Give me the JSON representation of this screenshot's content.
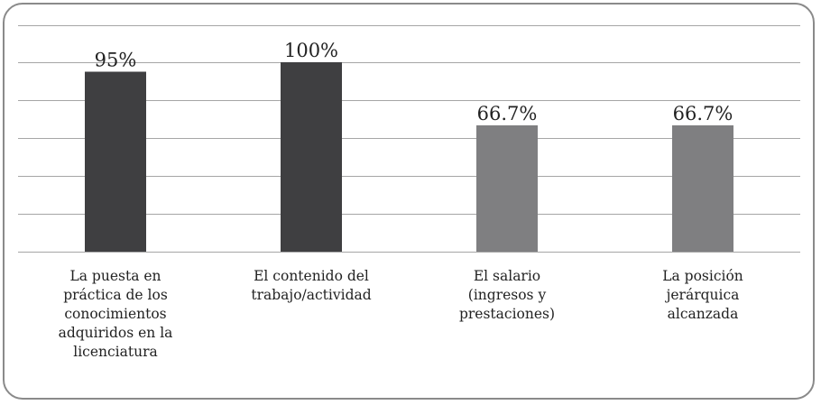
{
  "chart_data": {
    "type": "bar",
    "categories": [
      "La puesta en práctica de los conocimientos adquiridos en la licenciatura",
      "El contenido del trabajo/actividad",
      "El salario (ingresos y prestaciones)",
      "La posición jerárquica alcanzada"
    ],
    "category_lines": [
      [
        "La puesta en",
        "práctica de los",
        "conocimientos",
        "adquiridos en la",
        "licenciatura"
      ],
      [
        "El contenido del",
        "trabajo/actividad"
      ],
      [
        "El salario",
        "(ingresos y",
        "prestaciones)"
      ],
      [
        "La posición",
        "jerárquica",
        "alcanzada"
      ]
    ],
    "values": [
      95,
      100,
      66.7,
      66.7
    ],
    "value_labels": [
      "95%",
      "100%",
      "66.7%",
      "66.7%"
    ],
    "bar_colors": [
      "#3f3f41",
      "#3f3f41",
      "#7f7f81",
      "#7f7f81"
    ],
    "ylim": [
      0,
      100
    ],
    "gridlines": 6,
    "grid": true,
    "title": "",
    "xlabel": "",
    "ylabel": ""
  }
}
